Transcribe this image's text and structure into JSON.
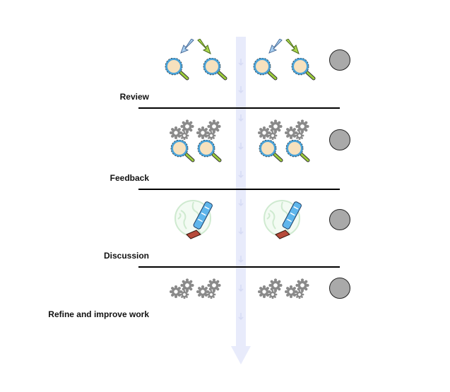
{
  "stages": [
    {
      "label": "Review"
    },
    {
      "label": "Feedback"
    },
    {
      "label": "Discussion"
    },
    {
      "label": "Refine and improve work"
    }
  ],
  "icons": {
    "magnifier": "magnifier-icon",
    "gears": "gears-icon",
    "arrow_blue": "arrow-down-left-icon",
    "arrow_green": "arrow-down-right-icon",
    "globe_pen": "globe-pen-icon",
    "status": "status-circle"
  },
  "colors": {
    "timeline": "#e8ebfb",
    "timeline_arrows": "#d6dbf4",
    "divider": "#000000",
    "circle_fill": "#a9a9a9",
    "magnifier_lens": "#f7e1bd",
    "magnifier_rim": "#4aa2d8",
    "magnifier_handle": "#9ccc3c",
    "gear": "#8a8a8a",
    "arrow_blue": "#a8cff0",
    "arrow_green": "#a9d64a",
    "globe": "#cfead0",
    "pen": "#5fb6ec",
    "pen_base": "#b64a3a"
  }
}
